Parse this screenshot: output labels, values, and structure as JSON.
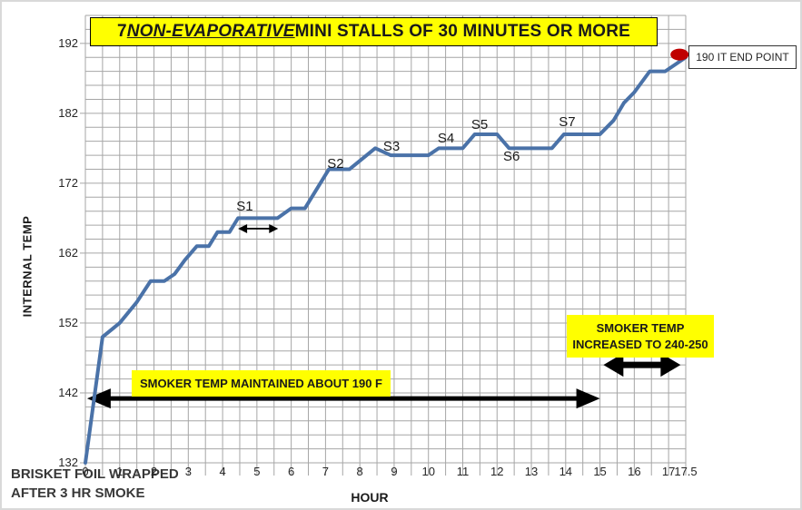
{
  "title": {
    "prefix": "7 ",
    "emphasis": "NON-EVAPORATIVE",
    "suffix": " MINI STALLS OF 30 MINUTES OR MORE"
  },
  "axes": {
    "y_label": "INTERNAL TEMP",
    "x_label": "HOUR",
    "y_tick_labels": [
      "192",
      "182",
      "172",
      "162",
      "152",
      "142",
      "132"
    ],
    "x_tick_labels": [
      "0",
      "1",
      "2",
      "3",
      "4",
      "5",
      "6",
      "7",
      "8",
      "9",
      "10",
      "11",
      "12",
      "13",
      "14",
      "15",
      "16",
      "17",
      "17.5"
    ]
  },
  "caption": {
    "line1": "BRISKET FOIL WRAPPED",
    "line2": "AFTER 3 HR SMOKE"
  },
  "annotations": {
    "end_point_label": "190 IT END POINT",
    "smoker_maintained": "SMOKER TEMP MAINTAINED ABOUT 190 F",
    "smoker_increased_line1": "SMOKER TEMP",
    "smoker_increased_line2": "INCREASED TO 240-250"
  },
  "colors": {
    "series": "#4a72a8",
    "grid": "#a6a6a6",
    "highlight": "#ffff00",
    "marker": "#c00000",
    "axis_text": "#262626"
  },
  "chart_data": {
    "type": "line",
    "title": "7 NON-EVAPORATIVE MINI STALLS OF 30 MINUTES OR MORE",
    "xlabel": "HOUR",
    "ylabel": "INTERNAL TEMP",
    "xlim": [
      0,
      17.5
    ],
    "ylim": [
      132,
      196
    ],
    "x_tick_values": [
      0,
      1,
      2,
      3,
      4,
      5,
      6,
      7,
      8,
      9,
      10,
      11,
      12,
      13,
      14,
      15,
      16,
      17,
      17.5
    ],
    "y_tick_values": [
      132,
      142,
      152,
      162,
      172,
      182,
      192
    ],
    "grid": {
      "x_minor_step": 0.5,
      "y_minor_step": 2,
      "visible": true
    },
    "legend": "none",
    "points": [
      [
        0,
        132
      ],
      [
        0.5,
        150
      ],
      [
        1,
        152
      ],
      [
        1.5,
        155
      ],
      [
        1.9,
        158
      ],
      [
        2.3,
        158
      ],
      [
        2.6,
        159
      ],
      [
        2.9,
        161
      ],
      [
        3.25,
        163
      ],
      [
        3.6,
        163
      ],
      [
        3.85,
        165
      ],
      [
        4.2,
        165
      ],
      [
        4.45,
        167
      ],
      [
        5.6,
        167
      ],
      [
        6.0,
        168.4
      ],
      [
        6.4,
        168.4
      ],
      [
        7.1,
        174
      ],
      [
        7.7,
        174
      ],
      [
        8.45,
        177
      ],
      [
        8.9,
        176
      ],
      [
        10,
        176
      ],
      [
        10.3,
        177
      ],
      [
        11,
        177
      ],
      [
        11.35,
        179
      ],
      [
        12,
        179
      ],
      [
        12.35,
        177
      ],
      [
        13.6,
        177
      ],
      [
        13.95,
        179
      ],
      [
        15,
        179
      ],
      [
        15.4,
        181
      ],
      [
        15.7,
        183.5
      ],
      [
        16,
        185
      ],
      [
        16.45,
        188
      ],
      [
        16.9,
        188
      ],
      [
        17.5,
        190
      ]
    ],
    "stalls": [
      {
        "label": "S1",
        "hour": 4.4,
        "temp": 169.8
      },
      {
        "label": "S2",
        "hour": 7.05,
        "temp": 175.9
      },
      {
        "label": "S3",
        "hour": 8.68,
        "temp": 178.4
      },
      {
        "label": "S4",
        "hour": 10.27,
        "temp": 179.5
      },
      {
        "label": "S5",
        "hour": 11.25,
        "temp": 181.5
      },
      {
        "label": "S6",
        "hour": 12.18,
        "temp": 176.9
      },
      {
        "label": "S7",
        "hour": 13.8,
        "temp": 181.8
      }
    ],
    "end_marker": {
      "hour": 17.32,
      "temp": 190.4
    },
    "arrows": [
      {
        "name": "smoker-maintained-range-arrow",
        "from_hour": 0.05,
        "to_hour": 15.0,
        "temp": 141.2,
        "weight": "thick"
      },
      {
        "name": "smoker-increased-range-arrow",
        "from_hour": 15.1,
        "to_hour": 17.35,
        "temp": 146.0,
        "weight": "heavy"
      },
      {
        "name": "s1-stall-range-arrow",
        "from_hour": 4.45,
        "to_hour": 5.62,
        "temp": 165.5,
        "weight": "thin"
      }
    ]
  }
}
